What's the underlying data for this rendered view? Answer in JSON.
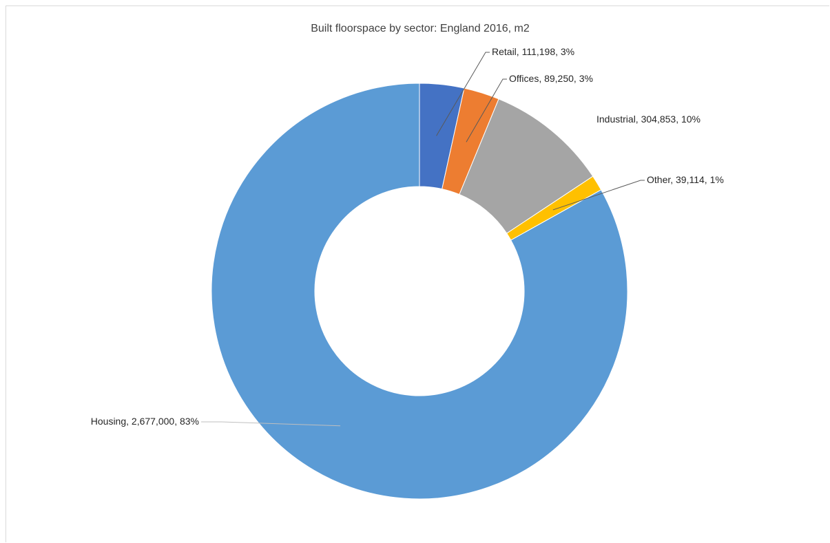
{
  "chart_data": {
    "type": "donut",
    "title": "Built floorspace by sector: England 2016, m2",
    "categories": [
      "Retail",
      "Offices",
      "Industrial",
      "Other",
      "Housing"
    ],
    "values": [
      111198,
      89250,
      304853,
      39114,
      2677000
    ],
    "percent_labels": [
      "3%",
      "3%",
      "10%",
      "1%",
      "83%"
    ],
    "value_labels": [
      "111,198",
      "89,250",
      "304,853",
      "39,114",
      "2,677,000"
    ],
    "colors": [
      "#4472c4",
      "#ed7d31",
      "#a5a5a5",
      "#ffc000",
      "#5b9bd5"
    ],
    "labels": [
      "Retail, 111,198, 3%",
      "Offices, 89,250, 3%",
      "Industrial, 304,853, 10%",
      "Other, 39,114, 1%",
      "Housing, 2,677,000, 83%"
    ],
    "legend": "none",
    "start_angle": "12 o'clock, clockwise"
  }
}
